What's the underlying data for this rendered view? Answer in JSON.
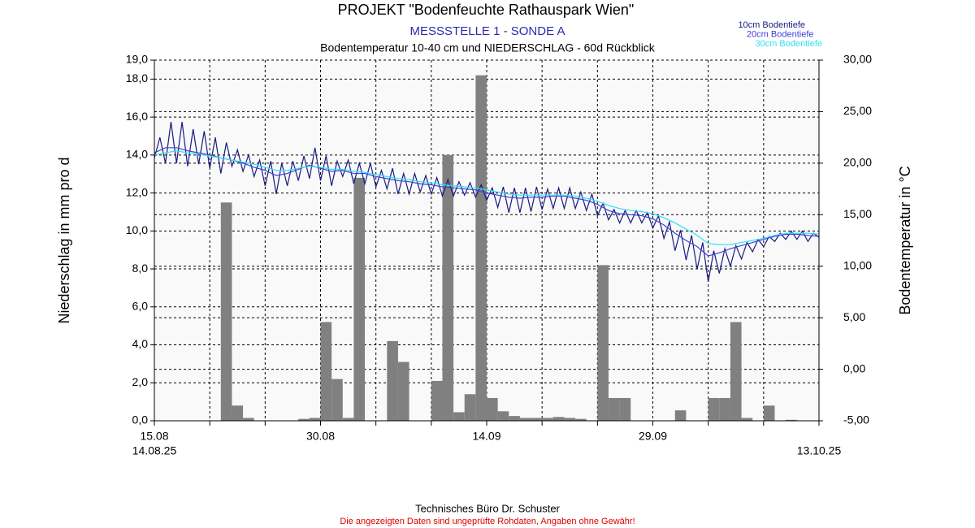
{
  "chart_data": {
    "type": "combo",
    "title": "PROJEKT \"Bodenfeuchte Rathauspark Wien\"",
    "subtitle": "MESSSTELLE 1 - SONDE A",
    "description": "Bodentemperatur 10-40 cm und NIEDERSCHLAG - 60d Rückblick",
    "ylabel": "Niederschlag in mm pro d",
    "y2label": "Bodentemperatur in °C",
    "footer": "Technisches Büro Dr. Schuster",
    "disclaimer": "Die angezeigten Daten sind ungeprüfte Rohdaten, Angaben ohne Gewähr!",
    "date_range": [
      "14.08.25",
      "13.10.25"
    ],
    "xlim": [
      0,
      60
    ],
    "xticks": [
      {
        "value": 0,
        "label": "15.08"
      },
      {
        "value": 15,
        "label": "30.08"
      },
      {
        "value": 30,
        "label": "14.09"
      },
      {
        "value": 45,
        "label": "29.09"
      }
    ],
    "xminorticks": [
      5,
      10,
      20,
      25,
      35,
      40,
      50,
      55,
      60
    ],
    "ylim": [
      0,
      19
    ],
    "yticks": [
      {
        "value": 0,
        "label": "0,0"
      },
      {
        "value": 2,
        "label": "2,0"
      },
      {
        "value": 4,
        "label": "4,0"
      },
      {
        "value": 6,
        "label": "6,0"
      },
      {
        "value": 8,
        "label": "8,0"
      },
      {
        "value": 10,
        "label": "10,0"
      },
      {
        "value": 12,
        "label": "12,0"
      },
      {
        "value": 14,
        "label": "14,0"
      },
      {
        "value": 16,
        "label": "16,0"
      },
      {
        "value": 18,
        "label": "18,0"
      },
      {
        "value": 19,
        "label": "19,0"
      }
    ],
    "y2lim": [
      -5,
      30
    ],
    "y2ticks": [
      {
        "value": -5,
        "label": "-5,00"
      },
      {
        "value": 0,
        "label": "0,00"
      },
      {
        "value": 5,
        "label": "5,00"
      },
      {
        "value": 10,
        "label": "10,00"
      },
      {
        "value": 15,
        "label": "15,00"
      },
      {
        "value": 20,
        "label": "20,00"
      },
      {
        "value": 25,
        "label": "25,00"
      },
      {
        "value": 30,
        "label": "30,00"
      }
    ],
    "grid": true,
    "legend": "top-right",
    "series": [
      {
        "type": "bar",
        "color": "#808080",
        "x": [
          0,
          1,
          2,
          3,
          4,
          5,
          6,
          7,
          8,
          9,
          10,
          11,
          12,
          13,
          14,
          15,
          16,
          17,
          18,
          19,
          20,
          21,
          22,
          23,
          24,
          25,
          26,
          27,
          28,
          29,
          30,
          31,
          32,
          33,
          34,
          35,
          36,
          37,
          38,
          39,
          40,
          41,
          42,
          43,
          44,
          45,
          46,
          47,
          48,
          49,
          50,
          51,
          52,
          53,
          54,
          55,
          56,
          57,
          58,
          59
        ],
        "values": [
          0,
          0,
          0,
          0,
          0,
          0,
          11.5,
          0.8,
          0.15,
          0,
          0,
          0,
          0,
          0.1,
          0.15,
          5.2,
          2.2,
          0.15,
          12.8,
          0,
          0,
          4.2,
          3.1,
          0,
          0,
          2.1,
          14.0,
          0.45,
          1.4,
          18.2,
          1.2,
          0.5,
          0.25,
          0.15,
          0.15,
          0.15,
          0.2,
          0.15,
          0.1,
          0,
          8.2,
          1.2,
          1.2,
          0,
          0,
          0,
          0,
          0.55,
          0,
          0,
          1.2,
          1.2,
          5.2,
          0.15,
          0,
          0.8,
          0,
          0.05,
          0,
          0
        ]
      },
      {
        "type": "line",
        "name": "10cm Bodentiefe",
        "color": "#1a1a80",
        "axis": "y2",
        "x": [
          0,
          0.5,
          1,
          1.5,
          2,
          2.5,
          3,
          3.5,
          4,
          4.5,
          5,
          5.5,
          6,
          6.5,
          7,
          7.5,
          8,
          8.5,
          9,
          9.5,
          10,
          10.5,
          11,
          11.5,
          12,
          12.5,
          13,
          13.5,
          14,
          14.5,
          15,
          15.5,
          16,
          16.5,
          17,
          17.5,
          18,
          18.5,
          19,
          19.5,
          20,
          20.5,
          21,
          21.5,
          22,
          22.5,
          23,
          23.5,
          24,
          24.5,
          25,
          25.5,
          26,
          26.5,
          27,
          27.5,
          28,
          28.5,
          29,
          29.5,
          30,
          30.5,
          31,
          31.5,
          32,
          32.5,
          33,
          33.5,
          34,
          34.5,
          35,
          35.5,
          36,
          36.5,
          37,
          37.5,
          38,
          38.5,
          39,
          39.5,
          40,
          40.5,
          41,
          41.5,
          42,
          42.5,
          43,
          43.5,
          44,
          44.5,
          45,
          45.5,
          46,
          46.5,
          47,
          47.5,
          48,
          48.5,
          49,
          49.5,
          50,
          50.5,
          51,
          51.5,
          52,
          52.5,
          53,
          53.5,
          54,
          54.5,
          55,
          55.5,
          56,
          56.5,
          57,
          57.5,
          58,
          58.5,
          59,
          59.5,
          60
        ],
        "values": [
          20.5,
          22.5,
          20,
          24,
          20,
          24,
          19.7,
          23.3,
          19.9,
          23.1,
          19.5,
          22.5,
          19,
          22,
          19.7,
          21.3,
          19.2,
          20.8,
          18.7,
          20.3,
          17.8,
          20.2,
          17,
          20,
          17.8,
          20.2,
          18.3,
          20.7,
          18.5,
          21.5,
          18.3,
          20.7,
          17.8,
          20.2,
          18.7,
          20.3,
          18,
          20,
          18,
          20,
          17.7,
          19.3,
          17.5,
          19.5,
          17,
          19,
          17,
          19,
          17.2,
          18.8,
          17,
          18.6,
          16.8,
          18.4,
          16.8,
          18.2,
          16.9,
          18.1,
          16.7,
          17.9,
          16.4,
          17.6,
          15.7,
          17.7,
          15.2,
          17.6,
          15.2,
          17.6,
          15.3,
          17.7,
          15.5,
          17.5,
          15.6,
          17.6,
          15.6,
          17.6,
          15.6,
          17.2,
          15.4,
          17,
          14.9,
          16.1,
          14.5,
          15.5,
          14.2,
          15.4,
          14.2,
          15.4,
          14.2,
          15.2,
          13.7,
          14.9,
          12.7,
          14.3,
          11.5,
          13.5,
          10.6,
          13,
          9.7,
          12.3,
          8.5,
          11.5,
          9.3,
          11.7,
          10,
          12,
          10.7,
          12.3,
          11.4,
          12.6,
          11.9,
          12.9,
          12.4,
          13.2,
          12.6,
          13.4,
          12.6,
          13.4,
          12.4,
          13.2,
          12.8
        ]
      },
      {
        "type": "line",
        "name": "20cm Bodentiefe",
        "color": "#4040e0",
        "axis": "y2",
        "x": [
          0,
          1,
          2,
          3,
          4,
          5,
          6,
          7,
          8,
          9,
          10,
          11,
          12,
          13,
          14,
          15,
          16,
          17,
          18,
          19,
          20,
          21,
          22,
          23,
          24,
          25,
          26,
          27,
          28,
          29,
          30,
          31,
          32,
          33,
          34,
          35,
          36,
          37,
          38,
          39,
          40,
          41,
          42,
          43,
          44,
          45,
          46,
          47,
          48,
          49,
          50,
          51,
          52,
          53,
          54,
          55,
          56,
          57,
          58,
          59,
          60
        ],
        "values": [
          21,
          21.5,
          21.5,
          21.2,
          21,
          20.8,
          20.5,
          20.3,
          20,
          19.6,
          19.3,
          18.8,
          19,
          19.4,
          19.8,
          19.5,
          19.2,
          19.3,
          19,
          19,
          18.7,
          18.5,
          18.3,
          18.2,
          18,
          17.9,
          17.7,
          17.6,
          17.5,
          17.4,
          17.1,
          16.9,
          16.7,
          16.6,
          16.7,
          16.7,
          16.8,
          16.8,
          16.6,
          16.4,
          16,
          15.4,
          15.1,
          15,
          14.9,
          14.6,
          14,
          13.2,
          12.5,
          11.9,
          11,
          11.3,
          11.7,
          12,
          12.3,
          12.6,
          12.9,
          13.1,
          13.1,
          13,
          12.9
        ]
      },
      {
        "type": "line",
        "name": "30cm Bodentiefe",
        "color": "#30e0f0",
        "axis": "y2",
        "x": [
          0,
          1,
          2,
          3,
          4,
          5,
          6,
          7,
          8,
          9,
          10,
          11,
          12,
          13,
          14,
          15,
          16,
          17,
          18,
          19,
          20,
          21,
          22,
          23,
          24,
          25,
          26,
          27,
          28,
          29,
          30,
          31,
          32,
          33,
          34,
          35,
          36,
          37,
          38,
          39,
          40,
          41,
          42,
          43,
          44,
          45,
          46,
          47,
          48,
          49,
          50,
          51,
          52,
          53,
          54,
          55,
          56,
          57,
          58,
          59,
          60
        ],
        "values": [
          20.8,
          21,
          21.2,
          21,
          20.9,
          20.7,
          20.5,
          20.3,
          20.1,
          19.9,
          19.6,
          19.3,
          19.3,
          19.5,
          19.7,
          19.6,
          19.4,
          19.4,
          19.2,
          19.1,
          18.9,
          18.7,
          18.5,
          18.4,
          18.2,
          18.1,
          17.9,
          17.8,
          17.7,
          17.6,
          17.4,
          17.2,
          17,
          16.9,
          16.9,
          16.9,
          16.9,
          16.9,
          16.8,
          16.6,
          16.3,
          15.9,
          15.6,
          15.4,
          15.3,
          15.1,
          14.7,
          14.2,
          13.6,
          13,
          12.2,
          12.1,
          12.1,
          12.3,
          12.5,
          12.7,
          13,
          13.2,
          13.2,
          13.2,
          13.1
        ]
      }
    ]
  }
}
